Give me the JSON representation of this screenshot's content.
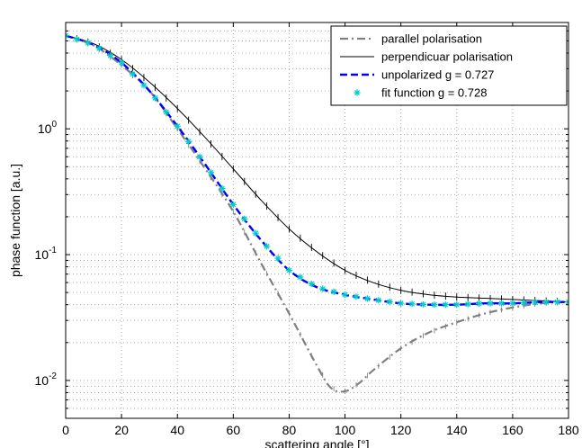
{
  "chart_data": {
    "type": "line",
    "xlabel": "scattering angle [°]",
    "ylabel": "phase function [a.u.]",
    "xlim": [
      0,
      180
    ],
    "ylim": [
      0.005,
      7
    ],
    "yscale": "log",
    "grid": true,
    "legend_position": "top-right",
    "x_ticks": [
      0,
      20,
      40,
      60,
      80,
      100,
      120,
      140,
      160,
      180
    ],
    "x_tick_labels": [
      "0",
      "20",
      "40",
      "60",
      "80",
      "100",
      "120",
      "140",
      "160",
      "180"
    ],
    "y_ticks": [
      0.01,
      0.1,
      1
    ],
    "y_tick_labels": [
      {
        "base": "10",
        "exp": "-2"
      },
      {
        "base": "10",
        "exp": "-1"
      },
      {
        "base": "10",
        "exp": "0"
      }
    ],
    "series": [
      {
        "name": "parallel polarisation",
        "style": "dashdot",
        "color": "#808080",
        "x": [
          0,
          10,
          20,
          30,
          40,
          50,
          60,
          70,
          80,
          90,
          95,
          100,
          105,
          110,
          120,
          130,
          140,
          150,
          160,
          170,
          180
        ],
        "y": [
          5.5,
          4.6,
          3.2,
          2.0,
          1.0,
          0.48,
          0.22,
          0.085,
          0.034,
          0.013,
          0.0087,
          0.0082,
          0.0095,
          0.012,
          0.018,
          0.024,
          0.029,
          0.034,
          0.038,
          0.041,
          0.042
        ]
      },
      {
        "name": "perpendicuar polarisation",
        "style": "solid",
        "color": "#000000",
        "x": [
          0,
          10,
          20,
          30,
          40,
          50,
          60,
          70,
          80,
          90,
          100,
          110,
          120,
          130,
          140,
          150,
          160,
          170,
          180
        ],
        "y": [
          5.5,
          4.75,
          3.55,
          2.35,
          1.45,
          0.85,
          0.48,
          0.27,
          0.16,
          0.105,
          0.075,
          0.06,
          0.052,
          0.048,
          0.046,
          0.045,
          0.044,
          0.043,
          0.042
        ]
      },
      {
        "name": "unpolarized g = 0.727",
        "style": "dashed",
        "color": "#0000FF",
        "x": [
          0,
          10,
          20,
          30,
          40,
          50,
          60,
          70,
          80,
          90,
          100,
          110,
          120,
          130,
          140,
          150,
          160,
          170,
          180
        ],
        "y": [
          5.5,
          4.65,
          3.35,
          2.0,
          1.05,
          0.52,
          0.25,
          0.13,
          0.075,
          0.055,
          0.048,
          0.044,
          0.041,
          0.04,
          0.04,
          0.041,
          0.041,
          0.042,
          0.042
        ]
      },
      {
        "name": "fit function g = 0.728",
        "style": "markers",
        "color": "#00CCCC",
        "x": [
          0,
          10,
          20,
          30,
          40,
          50,
          60,
          70,
          80,
          90,
          100,
          110,
          120,
          130,
          140,
          150,
          160,
          170,
          180
        ],
        "y": [
          5.5,
          4.65,
          3.35,
          2.0,
          1.05,
          0.52,
          0.25,
          0.13,
          0.075,
          0.055,
          0.048,
          0.044,
          0.041,
          0.04,
          0.04,
          0.041,
          0.041,
          0.042,
          0.042
        ]
      }
    ]
  }
}
